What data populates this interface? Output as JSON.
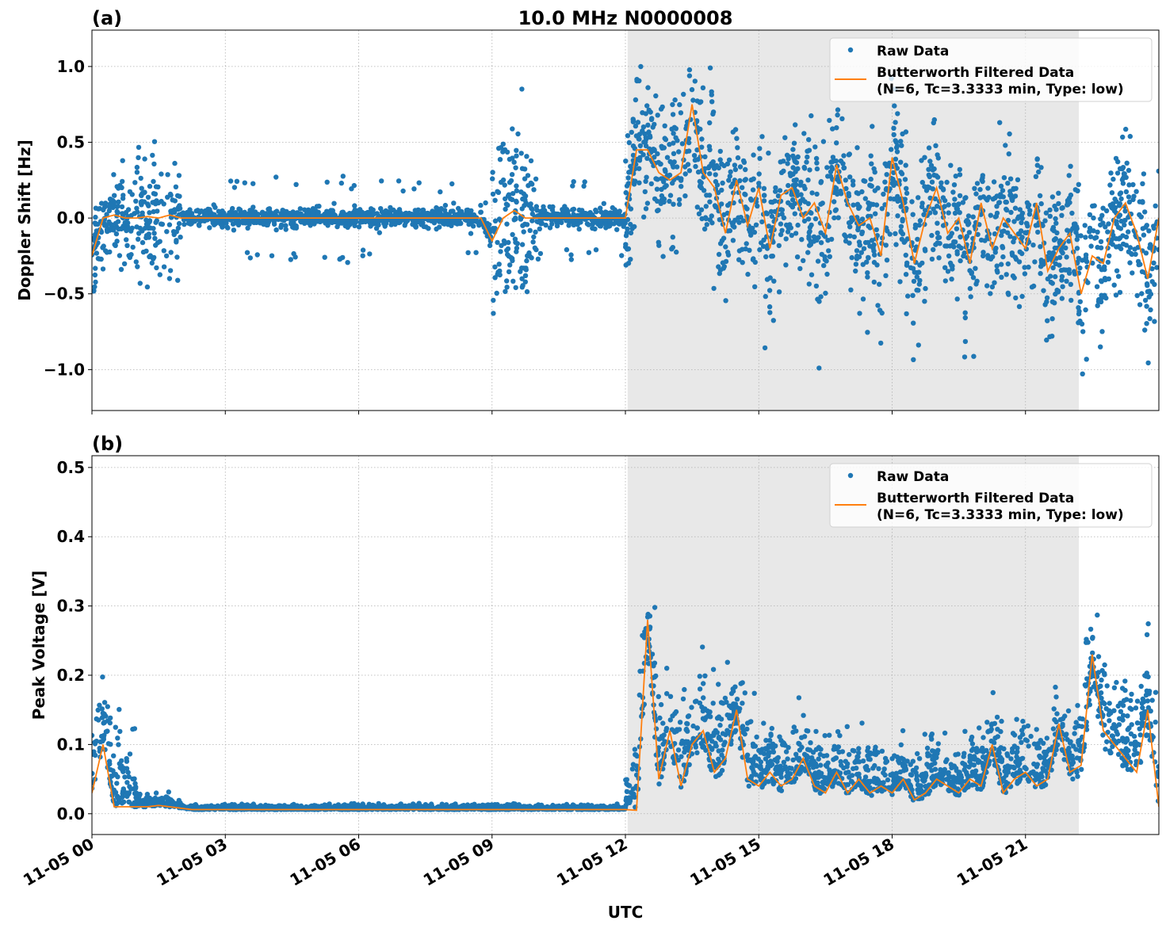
{
  "chart_data": [
    {
      "type": "scatter",
      "panel_label": "(a)",
      "title": "10.0 MHz N0000008",
      "xlabel": "UTC",
      "ylabel": "Doppler Shift [Hz]",
      "xlim_hours": [
        0,
        24
      ],
      "ylim": [
        -1.27,
        1.24
      ],
      "yticks": [
        -1.0,
        -0.5,
        0.0,
        0.5,
        1.0
      ],
      "ytick_labels": [
        "−1.0",
        "−0.5",
        "0.0",
        "0.5",
        "1.0"
      ],
      "grid": true,
      "legend_position": "top-right",
      "legend": [
        "Raw Data",
        "Butterworth Filtered Data\n(N=6, Tc=3.3333 min, Type: low)"
      ],
      "shaded_region_hours": [
        12.05,
        22.2
      ],
      "filtered_step_hours": 0.25,
      "filtered": [
        -0.25,
        0,
        0.02,
        0,
        0,
        0.01,
        0,
        0.02,
        0,
        0,
        0,
        0,
        0,
        0,
        0,
        0,
        0,
        0,
        0,
        0,
        0,
        0,
        0,
        0,
        0,
        0,
        0,
        0,
        0,
        0,
        0,
        0,
        0,
        0,
        0,
        0,
        -0.15,
        0,
        0.05,
        0,
        0,
        0,
        0,
        0,
        0,
        0,
        0,
        0,
        0,
        0.45,
        0.45,
        0.3,
        0.25,
        0.3,
        0.75,
        0.3,
        0.2,
        -0.1,
        0.25,
        -0.05,
        0.2,
        -0.2,
        0.15,
        0.2,
        0,
        0.1,
        -0.1,
        0.35,
        0.1,
        -0.05,
        0,
        -0.25,
        0.4,
        0.1,
        -0.3,
        0,
        0.2,
        -0.1,
        0,
        -0.3,
        0.1,
        -0.2,
        0,
        -0.1,
        -0.2,
        0.1,
        -0.35,
        -0.2,
        -0.1,
        -0.5,
        -0.25,
        -0.3,
        0,
        0.1,
        -0.1,
        -0.4,
        0
      ],
      "raw_spread_per_hour": [
        0.15,
        0.2,
        0.03,
        0.03,
        0.03,
        0.03,
        0.03,
        0.03,
        0.03,
        0.25,
        0.03,
        0.03,
        0.22,
        0.25,
        0.25,
        0.25,
        0.25,
        0.25,
        0.25,
        0.25,
        0.25,
        0.22,
        0.22,
        0.25
      ]
    },
    {
      "type": "scatter",
      "panel_label": "(b)",
      "xlabel": "UTC",
      "ylabel": "Peak Voltage [V]",
      "xlim_hours": [
        0,
        24
      ],
      "ylim": [
        -0.03,
        0.517
      ],
      "yticks": [
        0.0,
        0.1,
        0.2,
        0.3,
        0.4,
        0.5
      ],
      "ytick_labels": [
        "0.0",
        "0.1",
        "0.2",
        "0.3",
        "0.4",
        "0.5"
      ],
      "grid": true,
      "legend_position": "top-right",
      "legend": [
        "Raw Data",
        "Butterworth Filtered Data\n(N=6, Tc=3.3333 min, Type: low)"
      ],
      "shaded_region_hours": [
        12.05,
        22.2
      ],
      "filtered_step_hours": 0.25,
      "filtered": [
        0.03,
        0.1,
        0.01,
        0.01,
        0.01,
        0.01,
        0.012,
        0.01,
        0.008,
        0.006,
        0.006,
        0.006,
        0.006,
        0.006,
        0.006,
        0.006,
        0.006,
        0.006,
        0.006,
        0.006,
        0.006,
        0.006,
        0.006,
        0.006,
        0.006,
        0.006,
        0.006,
        0.006,
        0.006,
        0.006,
        0.006,
        0.006,
        0.006,
        0.006,
        0.006,
        0.006,
        0.006,
        0.006,
        0.006,
        0.006,
        0.006,
        0.006,
        0.006,
        0.006,
        0.006,
        0.006,
        0.006,
        0.006,
        0.006,
        0.005,
        0.28,
        0.05,
        0.12,
        0.04,
        0.1,
        0.12,
        0.06,
        0.08,
        0.15,
        0.05,
        0.04,
        0.06,
        0.04,
        0.05,
        0.08,
        0.04,
        0.03,
        0.06,
        0.03,
        0.05,
        0.03,
        0.04,
        0.03,
        0.05,
        0.02,
        0.03,
        0.05,
        0.04,
        0.03,
        0.05,
        0.04,
        0.1,
        0.03,
        0.05,
        0.06,
        0.04,
        0.05,
        0.13,
        0.06,
        0.07,
        0.23,
        0.12,
        0.1,
        0.08,
        0.06,
        0.15,
        0.01
      ],
      "raw_spread_per_hour": [
        0.05,
        0.008,
        0.003,
        0.003,
        0.003,
        0.003,
        0.003,
        0.003,
        0.003,
        0.003,
        0.003,
        0.003,
        0.045,
        0.04,
        0.04,
        0.035,
        0.03,
        0.025,
        0.025,
        0.025,
        0.03,
        0.03,
        0.04,
        0.045
      ]
    }
  ],
  "xticks_hours": [
    0,
    3,
    6,
    9,
    12,
    15,
    18,
    21
  ],
  "xtick_labels": [
    "11-05 00",
    "11-05 03",
    "11-05 06",
    "11-05 09",
    "11-05 12",
    "11-05 15",
    "11-05 18",
    "11-05 21"
  ],
  "colors": {
    "raw": "#1f77b4",
    "filtered": "#ff7f0e",
    "shade": "#e8e8e8",
    "grid": "#b0b0b0"
  }
}
